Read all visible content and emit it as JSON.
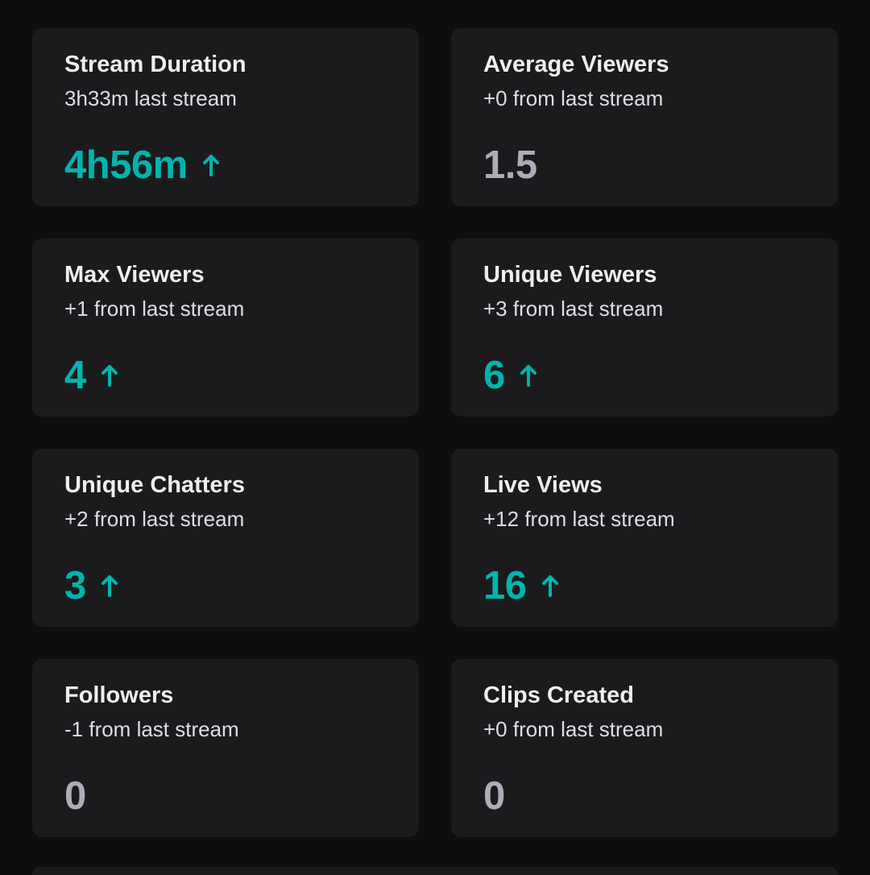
{
  "colors": {
    "background": "#0e0e10",
    "card": "#1b1b1e",
    "accent_up": "#00b5ad",
    "neutral_value": "#adadb8",
    "title": "#efeff1"
  },
  "stats": [
    {
      "title": "Stream Duration",
      "subtitle": "3h33m last stream",
      "value": "4h56m",
      "trend": "up"
    },
    {
      "title": "Average Viewers",
      "subtitle": "+0 from last stream",
      "value": "1.5",
      "trend": "none"
    },
    {
      "title": "Max Viewers",
      "subtitle": "+1 from last stream",
      "value": "4",
      "trend": "up"
    },
    {
      "title": "Unique Viewers",
      "subtitle": "+3 from last stream",
      "value": "6",
      "trend": "up"
    },
    {
      "title": "Unique Chatters",
      "subtitle": "+2 from last stream",
      "value": "3",
      "trend": "up"
    },
    {
      "title": "Live Views",
      "subtitle": "+12 from last stream",
      "value": "16",
      "trend": "up"
    },
    {
      "title": "Followers",
      "subtitle": "-1 from last stream",
      "value": "0",
      "trend": "none"
    },
    {
      "title": "Clips Created",
      "subtitle": "+0 from last stream",
      "value": "0",
      "trend": "none"
    }
  ]
}
